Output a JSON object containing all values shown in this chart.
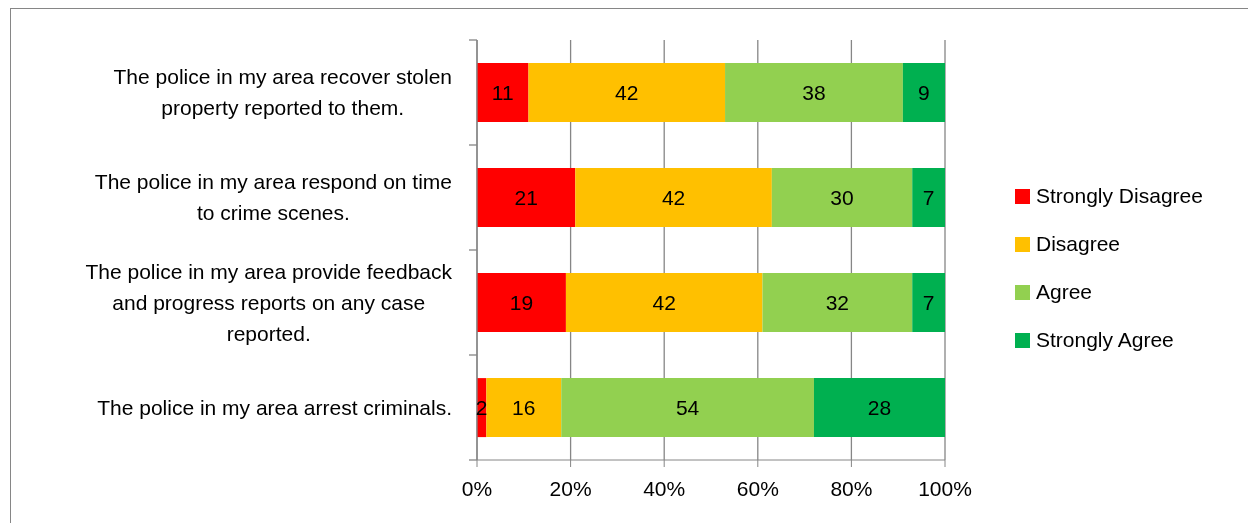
{
  "chart_data": {
    "type": "bar",
    "orientation": "horizontal",
    "stacked": true,
    "categories": [
      "The police in my area recover stolen property reported to them.",
      "The police in my area respond on time to crime scenes.",
      "The police in my area provide feedback and progress reports on any case reported.",
      "The police in my area arrest criminals."
    ],
    "series": [
      {
        "name": "Strongly Disagree",
        "color": "#ff0000",
        "values": [
          11,
          21,
          19,
          2
        ]
      },
      {
        "name": "Disagree",
        "color": "#ffc000",
        "values": [
          42,
          42,
          42,
          16
        ]
      },
      {
        "name": "Agree",
        "color": "#92d050",
        "values": [
          38,
          30,
          32,
          54
        ]
      },
      {
        "name": "Strongly Agree",
        "color": "#00b050",
        "values": [
          9,
          7,
          7,
          28
        ]
      }
    ],
    "xlim": [
      0,
      100
    ],
    "xticks": [
      {
        "value": 0,
        "label": "0%"
      },
      {
        "value": 20,
        "label": "20%"
      },
      {
        "value": 40,
        "label": "40%"
      },
      {
        "value": 60,
        "label": "60%"
      },
      {
        "value": 80,
        "label": "80%"
      },
      {
        "value": 100,
        "label": "100%"
      }
    ],
    "grid": "x",
    "legend": "right",
    "data_labels": true
  }
}
